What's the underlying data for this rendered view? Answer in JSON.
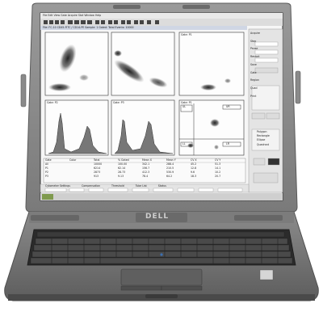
{
  "brand": "DELL",
  "window": {
    "menu": [
      "File",
      "Edit",
      "View",
      "Gate",
      "Acquire",
      "Stat",
      "Window",
      "Help"
    ],
    "status_text": "File: FC-10 CD45-FITC / CD14-PE  Sample: 1  Gated: Total  Events: 10000"
  },
  "plots": [
    {
      "title": "",
      "type": "scatter"
    },
    {
      "title": "",
      "type": "scatter"
    },
    {
      "title": "Gate: P1",
      "type": "scatter"
    },
    {
      "title": "Gate: P2",
      "type": "histogram"
    },
    {
      "title": "Gate: P3",
      "type": "histogram"
    },
    {
      "title": "Gate: P1",
      "type": "quadrant",
      "quadrants": [
        "UL",
        "UR",
        "LL",
        "LR"
      ]
    }
  ],
  "side_panel": {
    "labels": [
      "Acquire",
      "Stop",
      "Pause",
      "Restart",
      "Save",
      "Gate",
      "Region",
      "Quad",
      "Print"
    ],
    "radio_options": [
      "Polygon",
      "Rectangle",
      "Ellipse",
      "Quadrant"
    ]
  },
  "stats_table": {
    "headers": [
      "Gate",
      "Color",
      "Total",
      "% Gated",
      "Mean X",
      "Mean Y",
      "CV X",
      "CV Y"
    ],
    "rows": [
      [
        "All",
        "",
        "10000",
        "100.00",
        "342.1",
        "288.4",
        "45.2",
        "51.3"
      ],
      [
        "P1",
        "",
        "6214",
        "62.14",
        "156.7",
        "210.5",
        "12.8",
        "14.1"
      ],
      [
        "P2",
        "",
        "2873",
        "28.73",
        "412.3",
        "530.9",
        "9.6",
        "10.2"
      ],
      [
        "P3",
        "",
        "913",
        "9.13",
        "78.4",
        "64.2",
        "18.3",
        "20.7"
      ]
    ]
  },
  "bottom_bar": {
    "items": [
      "Cytometer Settings",
      "Compensation",
      "Threshold",
      "Tube List",
      "Status"
    ]
  }
}
